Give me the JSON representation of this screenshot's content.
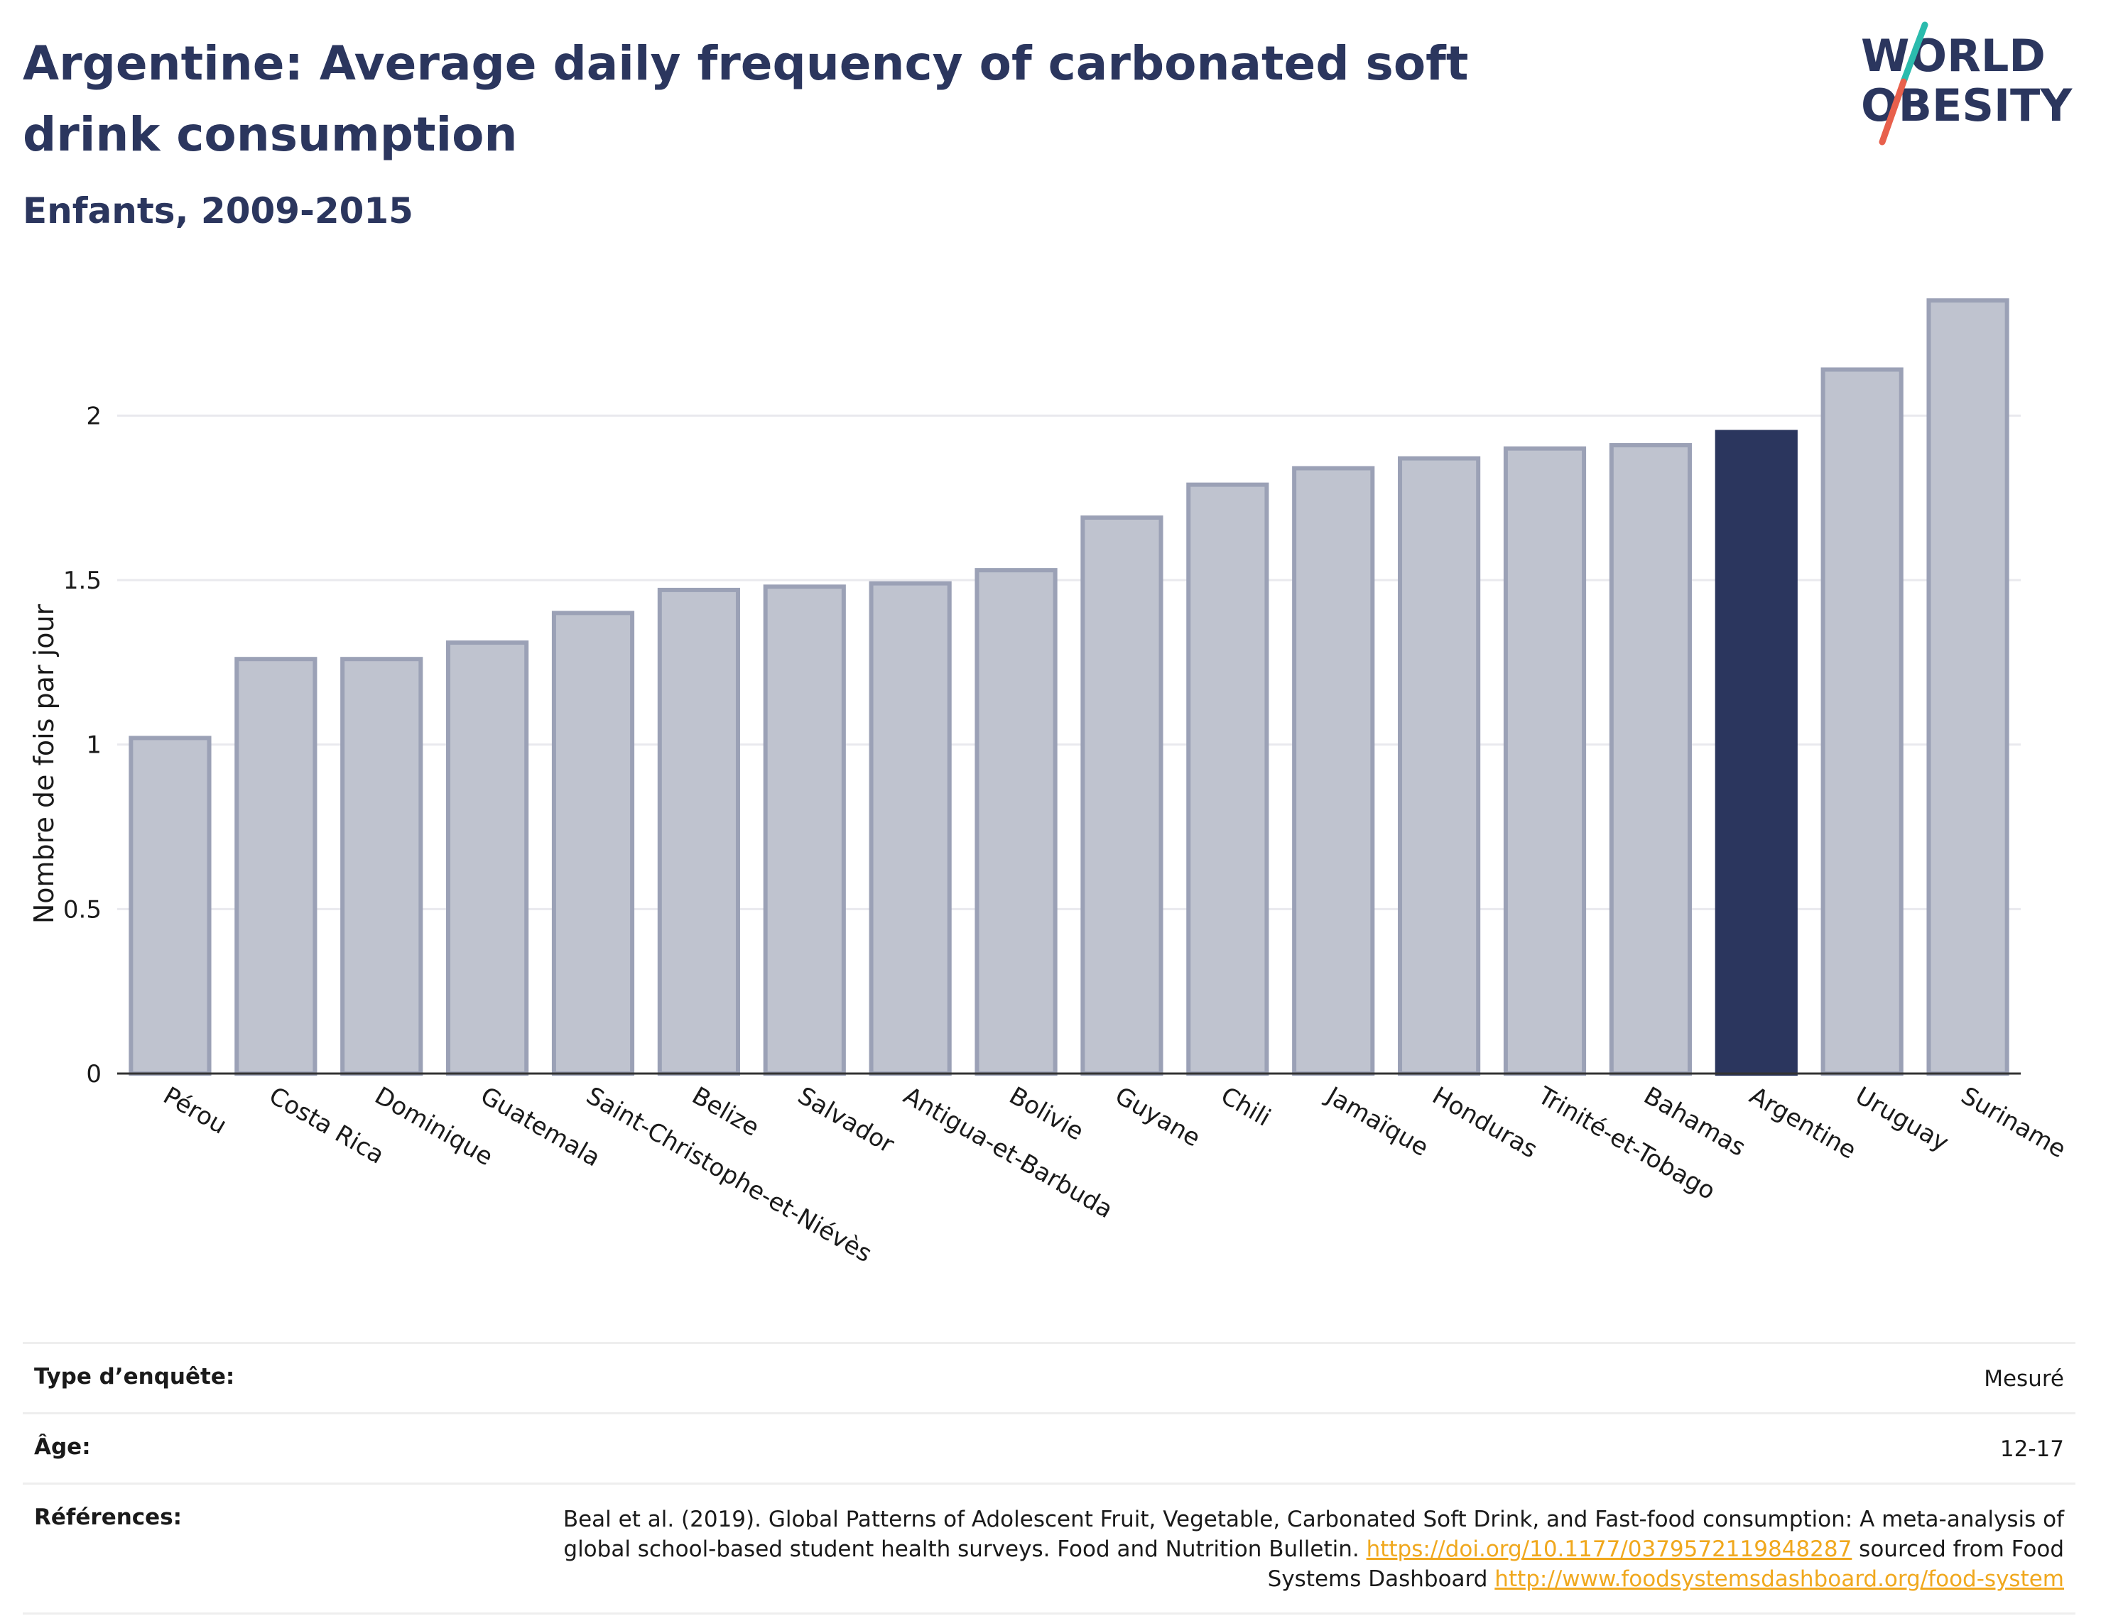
{
  "header": {
    "title": "Argentine: Average daily frequency of carbonated soft drink consumption",
    "subtitle": "Enfants, 2009-2015"
  },
  "logo": {
    "line1": "WORLD",
    "line2": "OBESITY",
    "accent_teal": "#2bbbad",
    "accent_red": "#e8604c"
  },
  "colors": {
    "highlight": "#2b365e",
    "bar_fill": "#bfc3cf",
    "bar_stroke": "#9ba1b6",
    "grid": "#e9e9ee"
  },
  "chart_data": {
    "type": "bar",
    "ylabel": "Nombre de fois par jour",
    "ylim": [
      0,
      2.4
    ],
    "yticks": [
      0,
      0.5,
      1,
      1.5,
      2
    ],
    "ytick_labels": [
      "0",
      "0.5",
      "1",
      "1.5",
      "2"
    ],
    "grid": true,
    "highlight": "Argentine",
    "categories": [
      "Pérou",
      "Costa Rica",
      "Dominique",
      "Guatemala",
      "Saint-Christophe-et-Niévès",
      "Belize",
      "Salvador",
      "Antigua-et-Barbuda",
      "Bolivie",
      "Guyane",
      "Chili",
      "Jamaïque",
      "Honduras",
      "Trinité-et-Tobago",
      "Bahamas",
      "Argentine",
      "Uruguay",
      "Suriname"
    ],
    "values": [
      1.02,
      1.26,
      1.26,
      1.31,
      1.4,
      1.47,
      1.48,
      1.49,
      1.53,
      1.69,
      1.79,
      1.84,
      1.87,
      1.9,
      1.91,
      1.95,
      2.14,
      2.35
    ]
  },
  "info": {
    "survey_label": "Type d’enquête:",
    "survey_value": "Mesuré",
    "age_label": "Âge:",
    "age_value": "12-17",
    "ref_label": "Références:",
    "ref_text1": "Beal et al. (2019). Global Patterns of Adolescent Fruit, Vegetable, Carbonated Soft Drink, and Fast-food consumption: A meta-analysis of global school-based student health surveys. Food and Nutrition Bulletin. ",
    "ref_link1": "https://doi.org/10.1177/0379572119848287",
    "ref_text2": " sourced from Food Systems Dashboard ",
    "ref_link2": "http://www.foodsystemsdashboard.org/food-system"
  }
}
